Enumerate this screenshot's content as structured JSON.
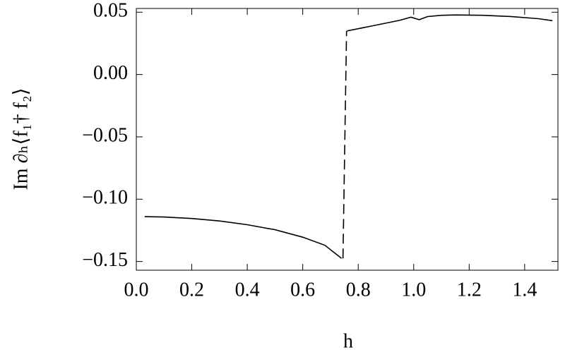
{
  "chart_data": {
    "type": "line",
    "x_label": "h",
    "y_label": "Im ∂ₕ⟨f₁† f₂⟩",
    "xlim": [
      0,
      1.52
    ],
    "ylim": [
      -0.157,
      0.053
    ],
    "xticks": [
      {
        "value": 0,
        "label": "0.0"
      },
      0.2,
      0.4,
      0.6,
      0.8,
      {
        "value": 1,
        "label": "1.0"
      },
      1.2,
      1.4
    ],
    "yticks": [
      {
        "value": 0.05,
        "label": "0.05"
      },
      {
        "value": 0,
        "label": "0.00"
      },
      {
        "value": -0.05,
        "label": "−0.05"
      },
      {
        "value": -0.1,
        "label": "−0.10"
      },
      {
        "value": -0.15,
        "label": "−0.15"
      }
    ],
    "series": [
      {
        "color": "#000000",
        "dashed": false,
        "x": [
          0.03,
          0.1,
          0.2,
          0.3,
          0.4,
          0.5,
          0.6,
          0.68,
          0.74
        ],
        "values": [
          -0.114,
          -0.1143,
          -0.1155,
          -0.1175,
          -0.1205,
          -0.1245,
          -0.1305,
          -0.137,
          -0.1475
        ]
      },
      {
        "color": "#000000",
        "dashed": true,
        "x": [
          0.745,
          0.758
        ],
        "values": [
          -0.1475,
          0.035
        ]
      },
      {
        "color": "#000000",
        "dashed": false,
        "x": [
          0.76,
          0.85,
          0.95,
          0.99,
          1.02,
          1.05,
          1.1,
          1.15,
          1.25,
          1.35,
          1.45,
          1.5
        ],
        "values": [
          0.035,
          0.039,
          0.0435,
          0.046,
          0.044,
          0.0465,
          0.0475,
          0.0478,
          0.0475,
          0.0465,
          0.0448,
          0.0432
        ]
      }
    ]
  }
}
